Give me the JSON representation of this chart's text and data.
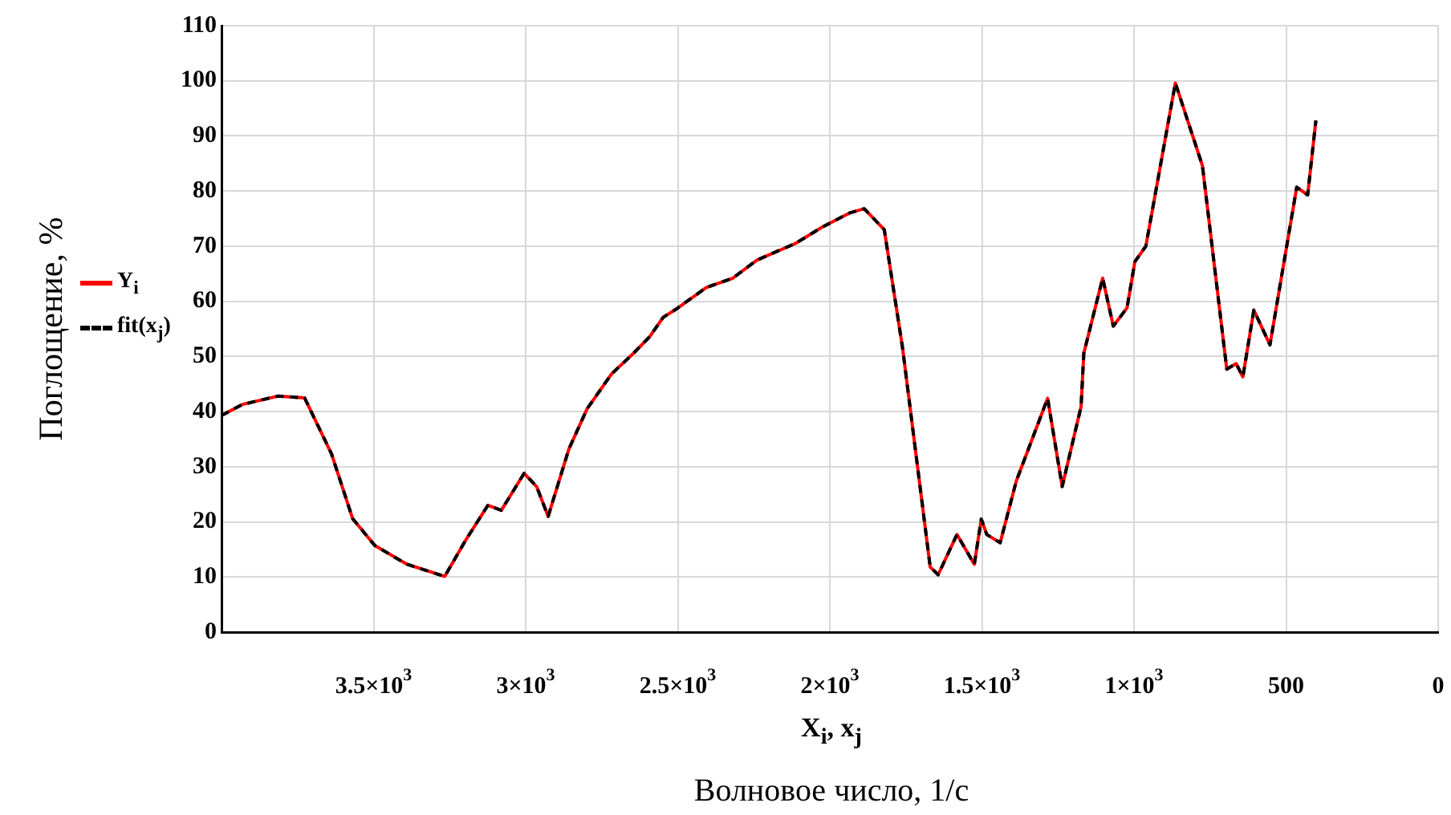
{
  "chart_data": {
    "type": "line",
    "xlabel": "X$_{i}$, x$_{j}$",
    "ylabel": "Поглощение, %",
    "annotations": [
      "Волновое число, 1/с"
    ],
    "x": [
      4000,
      3931,
      3815,
      3727,
      3638,
      3569,
      3496,
      3390,
      3266,
      3197,
      3124,
      3080,
      3005,
      2964,
      2926,
      2858,
      2798,
      2718,
      2645,
      2592,
      2548,
      2505,
      2406,
      2319,
      2239,
      2113,
      2027,
      1936,
      1887,
      1821,
      1761,
      1670,
      1644,
      1582,
      1525,
      1502,
      1484,
      1440,
      1387,
      1284,
      1236,
      1174,
      1165,
      1103,
      1068,
      1023,
      997,
      961,
      864,
      775,
      695,
      664,
      642,
      606,
      553,
      465,
      429,
      402
    ],
    "series": [
      {
        "name": "Y$_{i}$",
        "color": "#ff0000",
        "line_style": "solid",
        "values": [
          39.3,
          41.3,
          42.8,
          42.5,
          32.3,
          20.6,
          15.7,
          12.3,
          10.1,
          16.7,
          23,
          22.1,
          28.8,
          26.4,
          21,
          33.2,
          40.5,
          46.8,
          50.6,
          53.6,
          57.1,
          58.6,
          62.5,
          64.2,
          67.5,
          70.5,
          73.4,
          76,
          76.8,
          73,
          51.6,
          11.8,
          10.4,
          17.7,
          12.3,
          20.5,
          17.7,
          16.2,
          27.4,
          42.4,
          26.4,
          40.9,
          50.6,
          64.2,
          55.5,
          58.8,
          67.2,
          70,
          99.6,
          84.6,
          47.7,
          48.7,
          46.3,
          58.4,
          52.1,
          80.7,
          79.3,
          92.8
        ]
      },
      {
        "name": "fit(x$_{j}$)",
        "color": "#000000",
        "line_style": "dashed",
        "values": [
          39.3,
          41.3,
          42.8,
          42.5,
          32.3,
          20.6,
          15.7,
          12.3,
          10.1,
          16.7,
          23,
          22.1,
          28.8,
          26.4,
          21,
          33.2,
          40.5,
          46.8,
          50.6,
          53.6,
          57.1,
          58.6,
          62.5,
          64.2,
          67.5,
          70.5,
          73.4,
          76,
          76.8,
          73,
          51.6,
          11.8,
          10.4,
          17.7,
          12.3,
          20.5,
          17.7,
          16.2,
          27.4,
          42.4,
          26.4,
          40.9,
          50.6,
          64.2,
          55.5,
          58.8,
          67.2,
          70,
          99.6,
          84.6,
          47.7,
          48.7,
          46.3,
          58.4,
          52.1,
          80.7,
          79.3,
          92.8
        ]
      }
    ],
    "xlim": [
      4000,
      0
    ],
    "xticks": [
      {
        "value": 3500,
        "label": "3.5×10$^{3}$"
      },
      {
        "value": 3000,
        "label": "3×10$^{3}$"
      },
      {
        "value": 2500,
        "label": "2.5×10$^{3}$"
      },
      {
        "value": 2000,
        "label": "2×10$^{3}$"
      },
      {
        "value": 1500,
        "label": "1.5×10$^{3}$"
      },
      {
        "value": 1000,
        "label": "1×10$^{3}$"
      },
      500,
      0
    ],
    "ylim": [
      0,
      110
    ],
    "yticks": [
      0,
      10,
      20,
      30,
      40,
      50,
      60,
      70,
      80,
      90,
      100,
      110
    ],
    "grid": true,
    "legend": "left",
    "marker": "none"
  }
}
